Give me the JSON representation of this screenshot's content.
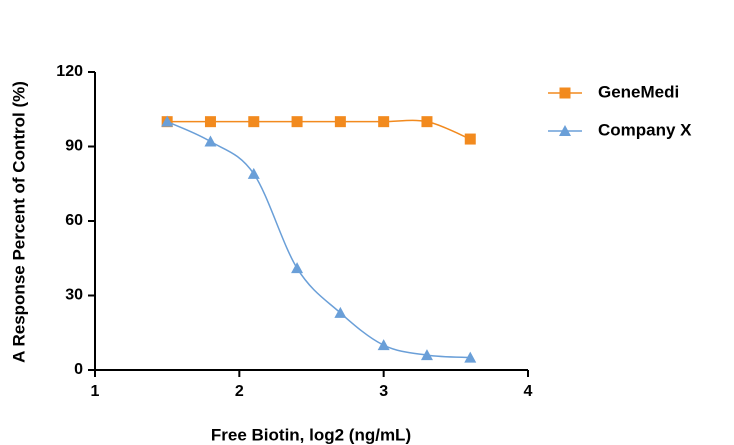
{
  "chart_data": {
    "type": "line",
    "x_label": "Free Biotin, log2  (ng/mL)",
    "y_label": "A Response Percent of Control (%)",
    "x": [
      1.5,
      1.8,
      2.1,
      2.4,
      2.7,
      3.0,
      3.3,
      3.6
    ],
    "series": [
      {
        "name": "GeneMedi",
        "color": "#f28a1e",
        "marker": "square",
        "values": [
          100,
          100,
          100,
          100,
          100,
          100,
          100,
          93
        ]
      },
      {
        "name": "Company X",
        "color": "#6a9fd8",
        "marker": "triangle",
        "values": [
          100,
          92,
          79,
          41,
          23,
          10,
          6,
          5
        ]
      }
    ],
    "xlim": [
      1,
      4
    ],
    "xticks": [
      1,
      2,
      3,
      4
    ],
    "ylim": [
      0,
      120
    ],
    "yticks": [
      0,
      30,
      60,
      90,
      120
    ],
    "grid": false,
    "legend": "top-right"
  }
}
